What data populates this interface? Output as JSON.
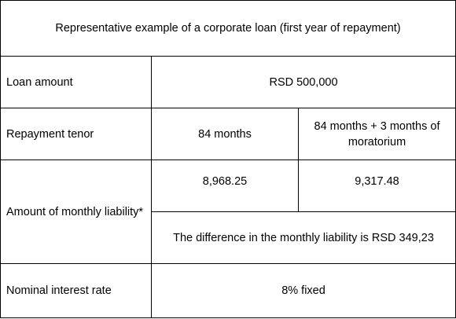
{
  "table": {
    "title": "Representative example of a corporate loan (first year of repayment)",
    "rows": {
      "loan_amount": {
        "label": "Loan amount",
        "value": "RSD 500,000"
      },
      "repayment_tenor": {
        "label": "Repayment tenor",
        "option_a": "84 months",
        "option_b": "84 months + 3 months of moratorium"
      },
      "monthly_liability": {
        "label": "Amount of monthly liability*",
        "option_a": "8,968.25",
        "option_b": "9,317.48",
        "difference": "The difference in the monthly liability is RSD 349,23"
      },
      "interest_rate": {
        "label": "Nominal interest rate",
        "value": "8% fixed"
      }
    }
  }
}
